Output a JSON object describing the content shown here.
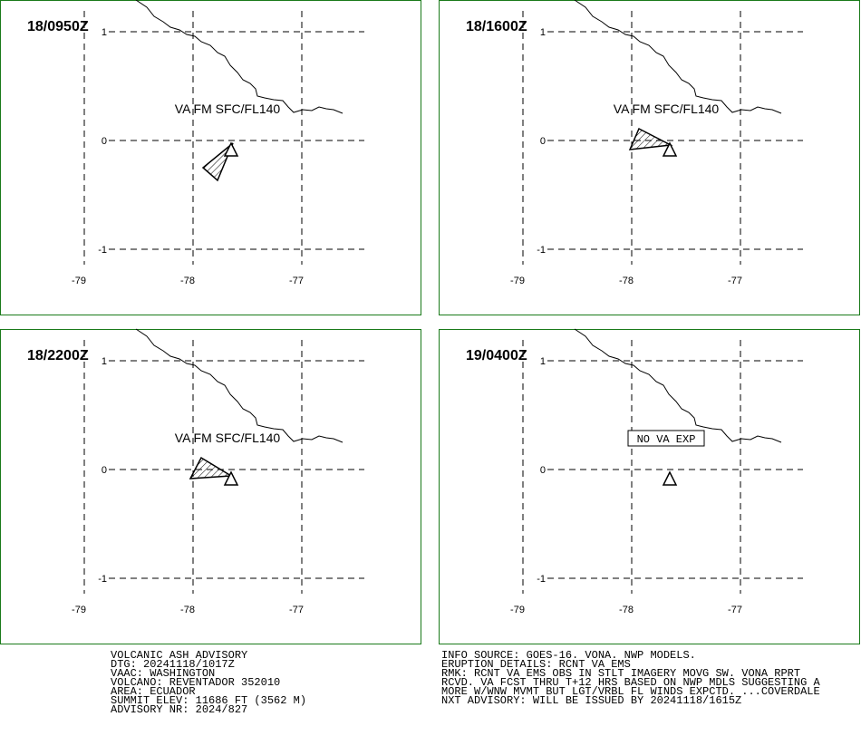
{
  "grid": {
    "lat_labels": [
      "1",
      "0",
      "-1"
    ],
    "lon_labels": [
      "-79",
      "-78",
      "-77"
    ]
  },
  "panels": [
    {
      "time": "18/0950Z",
      "label": "VA FM SFC/FL140"
    },
    {
      "time": "18/1600Z",
      "label": "VA FM SFC/FL140"
    },
    {
      "time": "18/2200Z",
      "label": "VA FM SFC/FL140"
    },
    {
      "time": "19/0400Z",
      "label": "NO VA EXP"
    }
  ],
  "advisory_left": [
    "VOLCANIC ASH ADVISORY",
    "DTG: 20241118/1017Z",
    "VAAC: WASHINGTON",
    "VOLCANO: REVENTADOR 352010",
    "AREA: ECUADOR",
    "SUMMIT ELEV: 11686 FT (3562 M)",
    "ADVISORY NR: 2024/827"
  ],
  "advisory_right": [
    "INFO SOURCE: GOES-16. VONA. NWP MODELS.",
    "ERUPTION DETAILS: RCNT VA EMS",
    "RMK: RCNT VA EMS OBS IN STLT IMAGERY MOVG SW. VONA RPRT",
    "RCVD. VA FCST THRU T+12 HRS BASED ON NWP MDLS SUGGESTING A",
    "MORE W/WNW MVMT BUT LGT/VRBL FL WINDS EXPCTD. ...COVERDALE",
    "NXT ADVISORY: WILL BE ISSUED BY 20241118/1615Z"
  ]
}
